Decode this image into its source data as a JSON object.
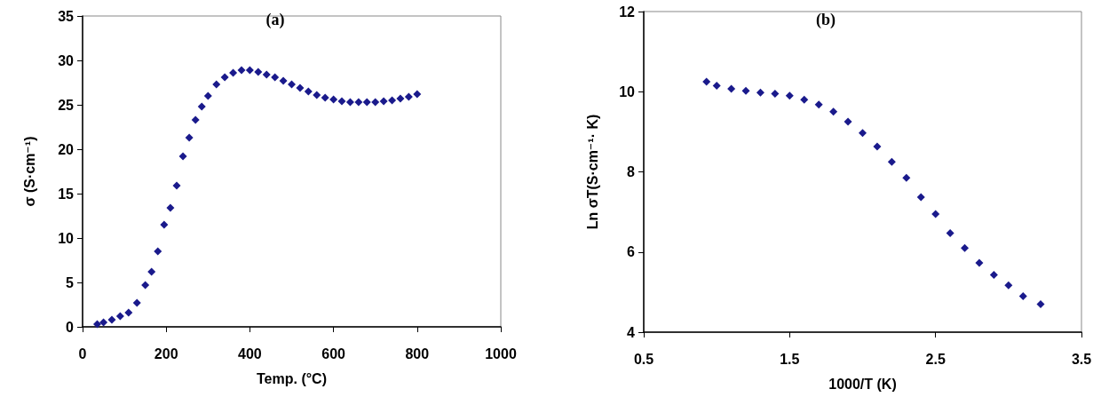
{
  "chart_data": [
    {
      "type": "scatter",
      "title": "(a)",
      "xlabel": "Temp. (°C)",
      "ylabel": "σ (S·cm⁻¹)",
      "color": "#1a1a8c",
      "marker": "diamond",
      "grid": false,
      "x": [
        35,
        50,
        70,
        90,
        110,
        130,
        150,
        165,
        180,
        195,
        210,
        225,
        240,
        255,
        270,
        285,
        300,
        320,
        340,
        360,
        380,
        400,
        420,
        440,
        460,
        480,
        500,
        520,
        540,
        560,
        580,
        600,
        620,
        640,
        660,
        680,
        700,
        720,
        740,
        760,
        780,
        800
      ],
      "values": [
        0.3,
        0.5,
        0.8,
        1.2,
        1.6,
        2.7,
        4.7,
        6.2,
        8.5,
        11.5,
        13.4,
        15.9,
        19.2,
        21.3,
        23.3,
        24.8,
        26,
        27.3,
        28.1,
        28.6,
        28.9,
        28.9,
        28.7,
        28.4,
        28.1,
        27.7,
        27.3,
        26.9,
        26.5,
        26.1,
        25.8,
        25.6,
        25.4,
        25.3,
        25.3,
        25.3,
        25.3,
        25.4,
        25.5,
        25.7,
        25.9,
        26.2
      ],
      "xlim": [
        0,
        1000
      ],
      "xticks": [
        0,
        200,
        400,
        600,
        800,
        1000
      ],
      "ylim": [
        0,
        35
      ],
      "yticks": [
        0,
        5,
        10,
        15,
        20,
        25,
        30,
        35
      ]
    },
    {
      "type": "scatter",
      "title": "(b)",
      "xlabel": "1000/T (K)",
      "ylabel": "Ln σT(S·cm⁻¹· K)",
      "color": "#1a1a8c",
      "marker": "diamond",
      "grid": false,
      "x": [
        0.93,
        1.0,
        1.1,
        1.2,
        1.3,
        1.4,
        1.5,
        1.6,
        1.7,
        1.8,
        1.9,
        2.0,
        2.1,
        2.2,
        2.3,
        2.4,
        2.5,
        2.6,
        2.7,
        2.8,
        2.9,
        3.0,
        3.1,
        3.22
      ],
      "values": [
        10.25,
        10.15,
        10.07,
        10.02,
        9.98,
        9.95,
        9.9,
        9.8,
        9.68,
        9.5,
        9.25,
        8.97,
        8.63,
        8.25,
        7.85,
        7.37,
        6.95,
        6.47,
        6.1,
        5.73,
        5.43,
        5.17,
        4.9,
        4.7
      ],
      "xlim": [
        0.5,
        3.5
      ],
      "xticks": [
        0.5,
        1.5,
        2.5,
        3.5
      ],
      "ylim": [
        4,
        12
      ],
      "yticks": [
        4,
        6,
        8,
        10,
        12
      ]
    }
  ]
}
